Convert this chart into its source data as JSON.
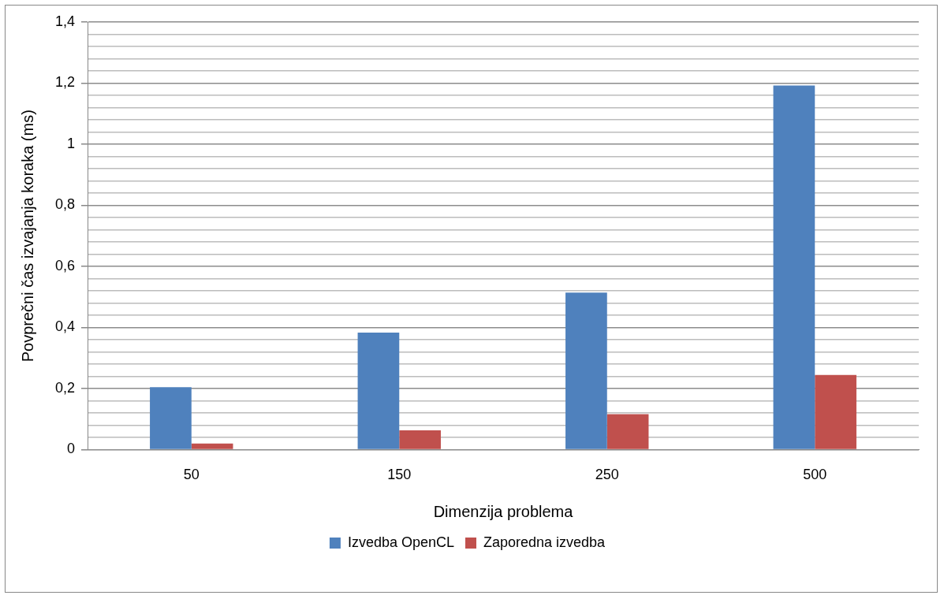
{
  "chart_data": {
    "type": "bar",
    "xlabel": "Dimenzija problema",
    "ylabel": "Povprečni čas izvajanja koraka (ms)",
    "categories": [
      "50",
      "150",
      "250",
      "500"
    ],
    "series": [
      {
        "name": "Izvedba OpenCL",
        "color": "#4f81bd",
        "values": [
          0.204,
          0.383,
          0.514,
          1.192
        ]
      },
      {
        "name": "Zaporedna izvedba",
        "color": "#c0504d",
        "values": [
          0.02,
          0.063,
          0.116,
          0.244
        ]
      }
    ],
    "ylim": [
      0,
      1.4
    ],
    "yticks": [
      0,
      {
        "value": 0.04,
        "label": null
      },
      {
        "value": 0.08,
        "label": null
      },
      {
        "value": 0.12,
        "label": null
      },
      {
        "value": 0.16,
        "label": null
      },
      {
        "value": 0.2,
        "label": "0,2"
      },
      {
        "value": 0.24,
        "label": null
      },
      {
        "value": 0.28,
        "label": null
      },
      {
        "value": 0.32,
        "label": null
      },
      {
        "value": 0.36,
        "label": null
      },
      {
        "value": 0.4,
        "label": "0,4"
      },
      {
        "value": 0.44,
        "label": null
      },
      {
        "value": 0.48,
        "label": null
      },
      {
        "value": 0.52,
        "label": null
      },
      {
        "value": 0.56,
        "label": null
      },
      {
        "value": 0.6,
        "label": "0,6"
      },
      {
        "value": 0.64,
        "label": null
      },
      {
        "value": 0.68,
        "label": null
      },
      {
        "value": 0.72,
        "label": null
      },
      {
        "value": 0.76,
        "label": null
      },
      {
        "value": 0.8,
        "label": "0,8"
      },
      {
        "value": 0.84,
        "label": null
      },
      {
        "value": 0.88,
        "label": null
      },
      {
        "value": 0.92,
        "label": null
      },
      {
        "value": 0.96,
        "label": null
      },
      1,
      {
        "value": 1.04,
        "label": null
      },
      {
        "value": 1.08,
        "label": null
      },
      {
        "value": 1.12,
        "label": null
      },
      {
        "value": 1.16,
        "label": null
      },
      {
        "value": 1.2,
        "label": "1,2"
      },
      {
        "value": 1.24,
        "label": null
      },
      {
        "value": 1.28,
        "label": null
      },
      {
        "value": 1.32,
        "label": null
      },
      {
        "value": 1.36,
        "label": null
      },
      {
        "value": 1.4,
        "label": "1,4"
      }
    ],
    "grid": "y",
    "legend": "bottom"
  }
}
